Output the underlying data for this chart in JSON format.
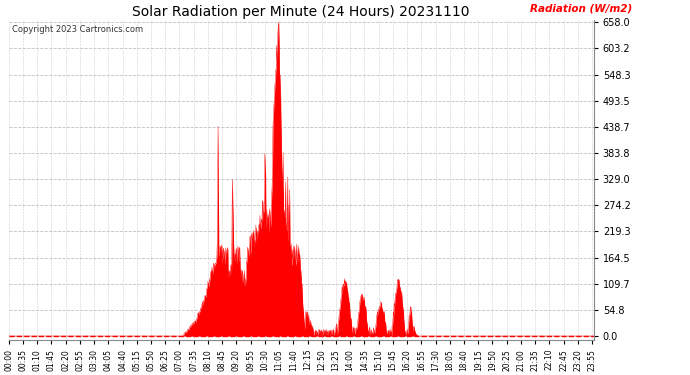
{
  "title": "Solar Radiation per Minute (24 Hours) 20231110",
  "ylabel": "Radiation (W/m2)",
  "copyright": "Copyright 2023 Cartronics.com",
  "bg_color": "#ffffff",
  "plot_bg_color": "#ffffff",
  "line_color": "#ff0000",
  "fill_color": "#ff0000",
  "zero_line_color": "#ff0000",
  "grid_color": "#bbbbbb",
  "ylim": [
    0.0,
    658.0
  ],
  "yticks": [
    0.0,
    54.8,
    109.7,
    164.5,
    219.3,
    274.2,
    329.0,
    383.8,
    438.7,
    493.5,
    548.3,
    603.2,
    658.0
  ],
  "ytick_labels": [
    "0.0",
    "54.8",
    "109.7",
    "164.5",
    "219.3",
    "274.2",
    "329.0",
    "383.8",
    "438.7",
    "493.5",
    "548.3",
    "603.2",
    "658.0"
  ],
  "total_minutes": 1440,
  "x_tick_interval_minutes": 35,
  "x_tick_labels": [
    "00:00",
    "00:35",
    "01:10",
    "01:45",
    "02:20",
    "02:55",
    "03:30",
    "04:05",
    "04:40",
    "05:15",
    "05:50",
    "06:25",
    "07:00",
    "07:35",
    "08:10",
    "08:45",
    "09:20",
    "09:55",
    "10:30",
    "11:05",
    "11:40",
    "12:15",
    "12:50",
    "13:25",
    "14:00",
    "14:35",
    "15:10",
    "15:45",
    "16:20",
    "16:55",
    "17:30",
    "18:05",
    "18:40",
    "19:15",
    "19:50",
    "20:25",
    "21:00",
    "21:35",
    "22:10",
    "22:45",
    "23:20",
    "23:55"
  ]
}
